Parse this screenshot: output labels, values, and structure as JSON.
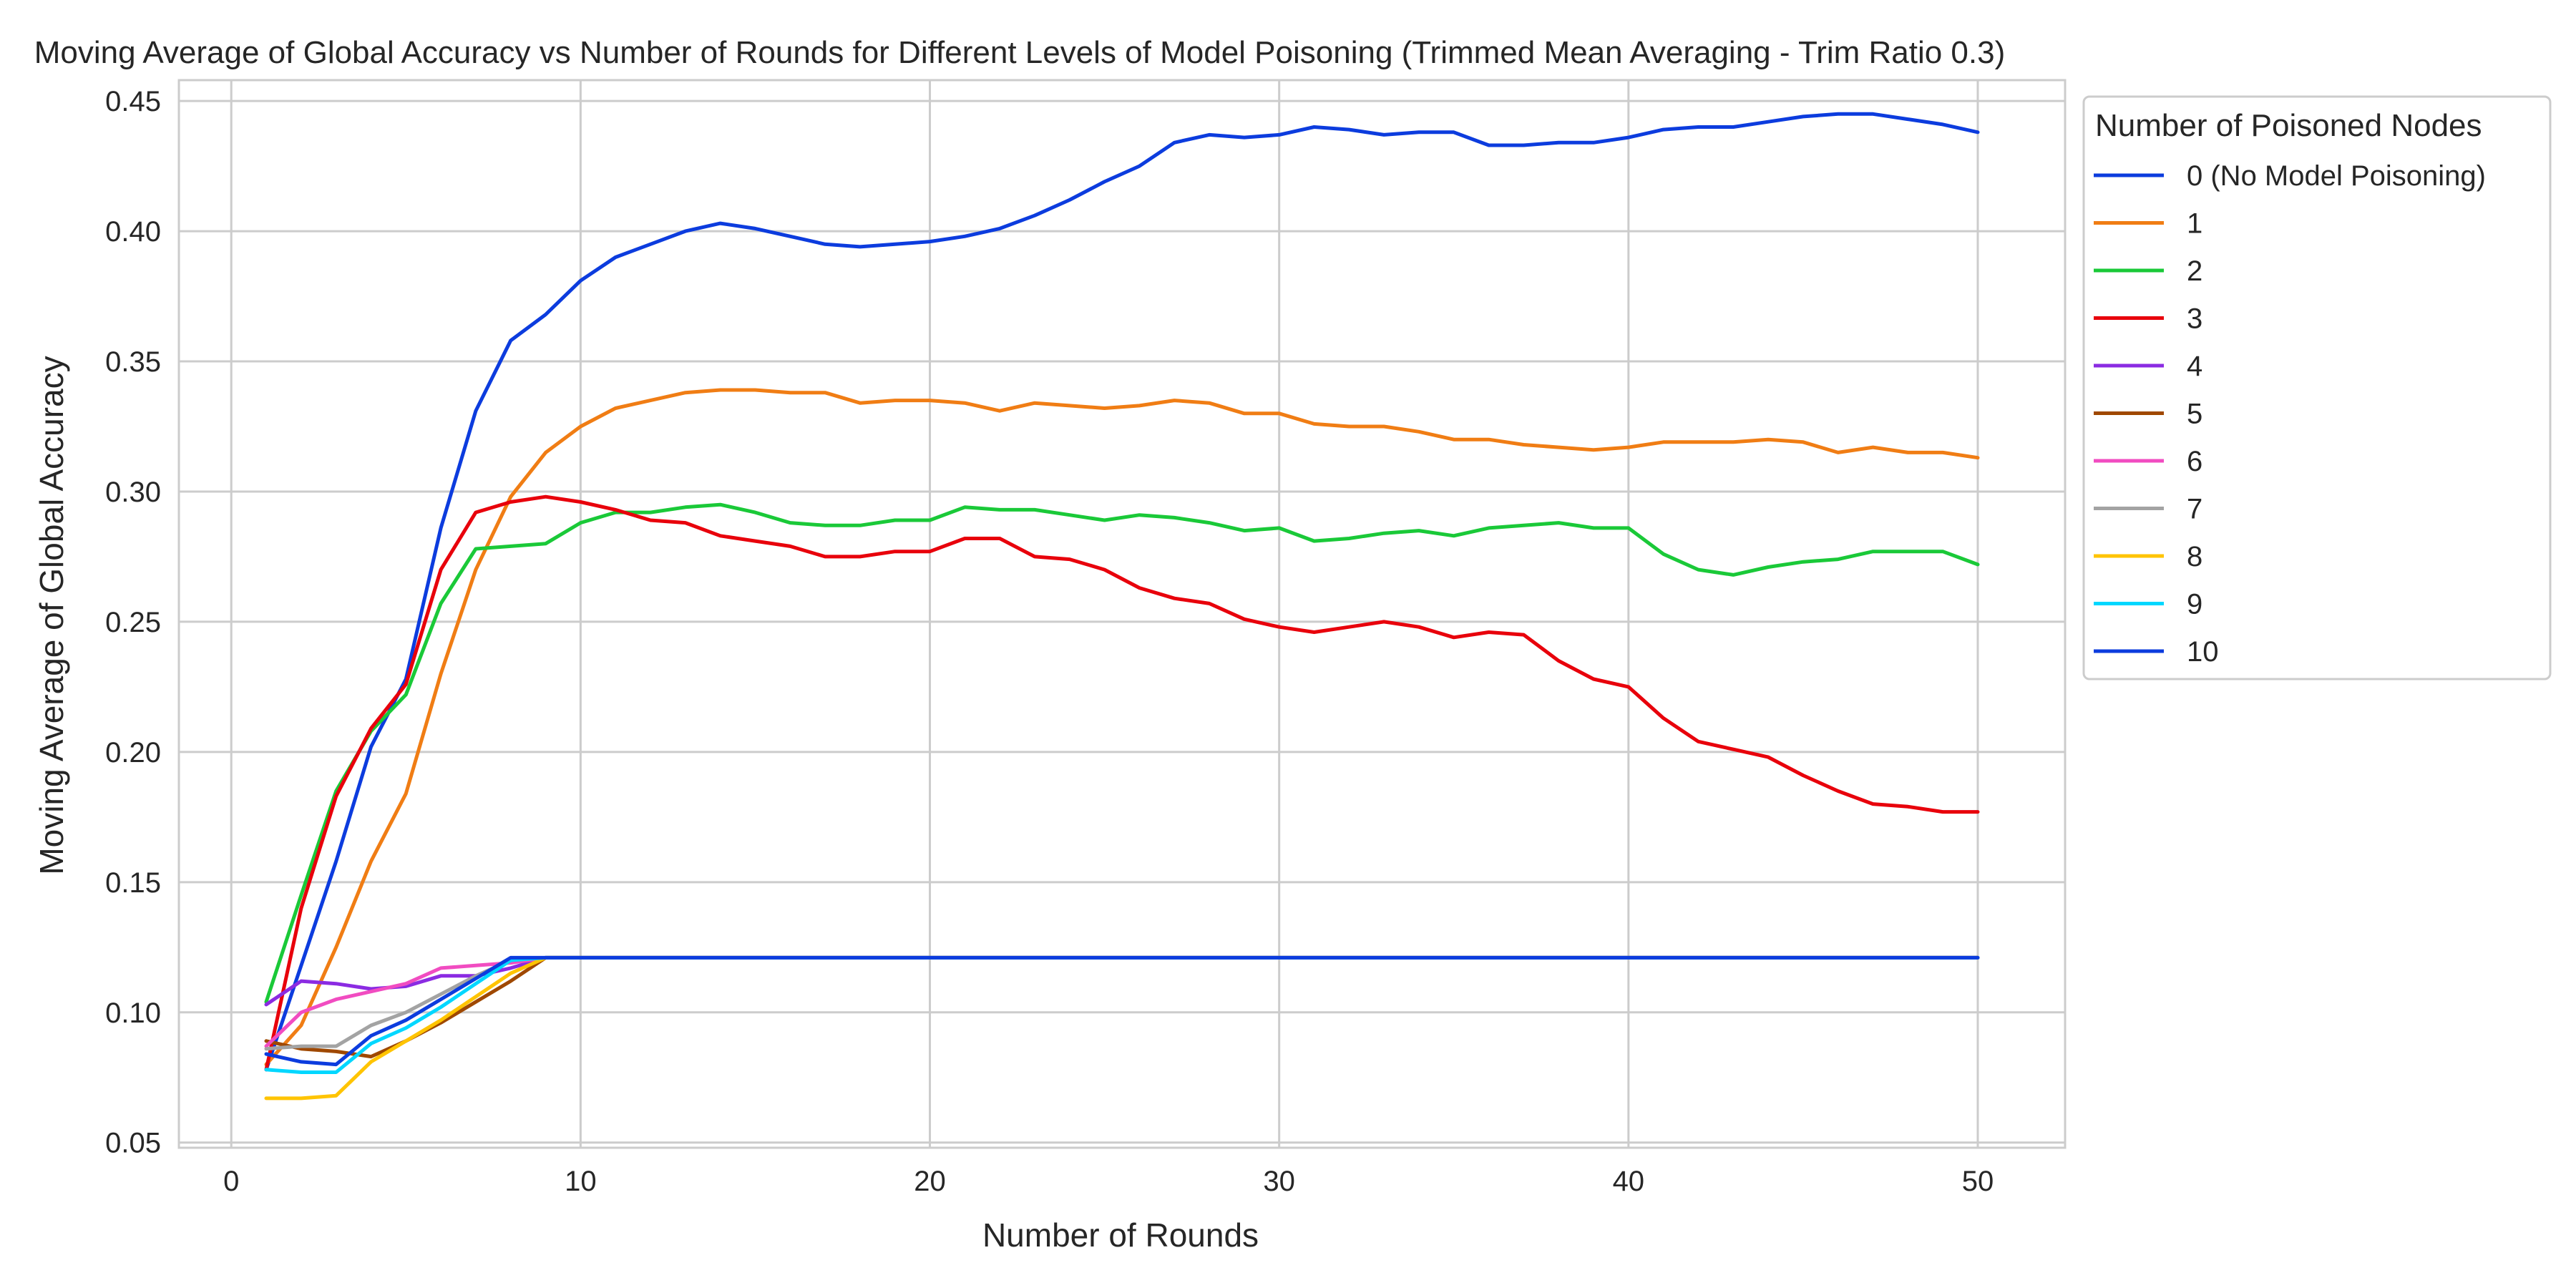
{
  "chart_data": {
    "type": "line",
    "title": "Moving Average of Global Accuracy vs Number of Rounds for Different Levels of Model Poisoning (Trimmed Mean Averaging - Trim Ratio 0.3)",
    "xlabel": "Number of Rounds",
    "ylabel": "Moving Average of Global Accuracy",
    "xlim": [
      -1.5,
      52.5
    ],
    "ylim": [
      0.048,
      0.458
    ],
    "xticks": [
      0,
      10,
      20,
      30,
      40,
      50
    ],
    "yticks": [
      0.05,
      0.1,
      0.15,
      0.2,
      0.25,
      0.3,
      0.35,
      0.4,
      0.45
    ],
    "xtick_labels": [
      "0",
      "10",
      "20",
      "30",
      "40",
      "50"
    ],
    "ytick_labels": [
      "0.05",
      "0.10",
      "0.15",
      "0.20",
      "0.25",
      "0.30",
      "0.35",
      "0.40",
      "0.45"
    ],
    "grid": true,
    "legend": {
      "title": "Number of Poisoned Nodes",
      "placement": "outside-right-top"
    },
    "series": [
      {
        "name": "0 (No Model Poisoning)",
        "color": "#0c3cde",
        "x": [
          1,
          2,
          3,
          4,
          5,
          6,
          7,
          8,
          9,
          10,
          11,
          12,
          13,
          14,
          15,
          16,
          17,
          18,
          19,
          20,
          21,
          22,
          23,
          24,
          25,
          26,
          27,
          28,
          29,
          30,
          31,
          32,
          33,
          34,
          35,
          36,
          37,
          38,
          39,
          40,
          41,
          42,
          43,
          44,
          45,
          46,
          47,
          48,
          49,
          50
        ],
        "y": [
          0.078,
          0.118,
          0.158,
          0.202,
          0.228,
          0.286,
          0.331,
          0.358,
          0.368,
          0.381,
          0.39,
          0.395,
          0.4,
          0.403,
          0.401,
          0.398,
          0.395,
          0.394,
          0.395,
          0.396,
          0.398,
          0.401,
          0.406,
          0.412,
          0.419,
          0.425,
          0.434,
          0.437,
          0.436,
          0.437,
          0.44,
          0.439,
          0.437,
          0.438,
          0.438,
          0.433,
          0.433,
          0.434,
          0.434,
          0.436,
          0.439,
          0.44,
          0.44,
          0.442,
          0.444,
          0.445,
          0.445,
          0.443,
          0.441,
          0.438
        ]
      },
      {
        "name": "1",
        "color": "#f07d14",
        "x": [
          1,
          2,
          3,
          4,
          5,
          6,
          7,
          8,
          9,
          10,
          11,
          12,
          13,
          14,
          15,
          16,
          17,
          18,
          19,
          20,
          21,
          22,
          23,
          24,
          25,
          26,
          27,
          28,
          29,
          30,
          31,
          32,
          33,
          34,
          35,
          36,
          37,
          38,
          39,
          40,
          41,
          42,
          43,
          44,
          45,
          46,
          47,
          48,
          49,
          50
        ],
        "y": [
          0.08,
          0.095,
          0.125,
          0.158,
          0.184,
          0.23,
          0.27,
          0.298,
          0.315,
          0.325,
          0.332,
          0.335,
          0.338,
          0.339,
          0.339,
          0.338,
          0.338,
          0.334,
          0.335,
          0.335,
          0.334,
          0.331,
          0.334,
          0.333,
          0.332,
          0.333,
          0.335,
          0.334,
          0.33,
          0.33,
          0.326,
          0.325,
          0.325,
          0.323,
          0.32,
          0.32,
          0.318,
          0.317,
          0.316,
          0.317,
          0.319,
          0.319,
          0.319,
          0.32,
          0.319,
          0.315,
          0.317,
          0.315,
          0.315,
          0.313
        ]
      },
      {
        "name": "2",
        "color": "#1ac938",
        "x": [
          1,
          2,
          3,
          4,
          5,
          6,
          7,
          8,
          9,
          10,
          11,
          12,
          13,
          14,
          15,
          16,
          17,
          18,
          19,
          20,
          21,
          22,
          23,
          24,
          25,
          26,
          27,
          28,
          29,
          30,
          31,
          32,
          33,
          34,
          35,
          36,
          37,
          38,
          39,
          40,
          41,
          42,
          43,
          44,
          45,
          46,
          47,
          48,
          49,
          50
        ],
        "y": [
          0.104,
          0.145,
          0.185,
          0.208,
          0.222,
          0.257,
          0.278,
          0.279,
          0.28,
          0.288,
          0.292,
          0.292,
          0.294,
          0.295,
          0.292,
          0.288,
          0.287,
          0.287,
          0.289,
          0.289,
          0.294,
          0.293,
          0.293,
          0.291,
          0.289,
          0.291,
          0.29,
          0.288,
          0.285,
          0.286,
          0.281,
          0.282,
          0.284,
          0.285,
          0.283,
          0.286,
          0.287,
          0.288,
          0.286,
          0.286,
          0.276,
          0.27,
          0.268,
          0.271,
          0.273,
          0.274,
          0.277,
          0.277,
          0.277,
          0.272
        ]
      },
      {
        "name": "3",
        "color": "#e8000b",
        "x": [
          1,
          2,
          3,
          4,
          5,
          6,
          7,
          8,
          9,
          10,
          11,
          12,
          13,
          14,
          15,
          16,
          17,
          18,
          19,
          20,
          21,
          22,
          23,
          24,
          25,
          26,
          27,
          28,
          29,
          30,
          31,
          32,
          33,
          34,
          35,
          36,
          37,
          38,
          39,
          40,
          41,
          42,
          43,
          44,
          45,
          46,
          47,
          48,
          49,
          50
        ],
        "y": [
          0.078,
          0.14,
          0.183,
          0.209,
          0.226,
          0.27,
          0.292,
          0.296,
          0.298,
          0.296,
          0.293,
          0.289,
          0.288,
          0.283,
          0.281,
          0.279,
          0.275,
          0.275,
          0.277,
          0.277,
          0.282,
          0.282,
          0.275,
          0.274,
          0.27,
          0.263,
          0.259,
          0.257,
          0.251,
          0.248,
          0.246,
          0.248,
          0.25,
          0.248,
          0.244,
          0.246,
          0.245,
          0.235,
          0.228,
          0.225,
          0.213,
          0.204,
          0.201,
          0.198,
          0.191,
          0.185,
          0.18,
          0.179,
          0.177,
          0.177
        ]
      },
      {
        "name": "4",
        "color": "#8b2be2",
        "x": [
          1,
          2,
          3,
          4,
          5,
          6,
          7,
          8,
          9,
          10,
          11,
          12,
          13,
          14,
          15,
          16,
          17,
          18,
          19,
          20,
          21,
          22,
          23,
          24,
          25,
          26,
          27,
          28,
          29,
          30,
          31,
          32,
          33,
          34,
          35,
          36,
          37,
          38,
          39,
          40,
          41,
          42,
          43,
          44,
          45,
          46,
          47,
          48,
          49,
          50
        ],
        "y": [
          0.103,
          0.112,
          0.111,
          0.109,
          0.11,
          0.114,
          0.114,
          0.117,
          0.121,
          0.121,
          0.121,
          0.121,
          0.121,
          0.121,
          0.121,
          0.121,
          0.121,
          0.121,
          0.121,
          0.121,
          0.121,
          0.121,
          0.121,
          0.121,
          0.121,
          0.121,
          0.121,
          0.121,
          0.121,
          0.121,
          0.121,
          0.121,
          0.121,
          0.121,
          0.121,
          0.121,
          0.121,
          0.121,
          0.121,
          0.121,
          0.121,
          0.121,
          0.121,
          0.121,
          0.121,
          0.121,
          0.121,
          0.121,
          0.121,
          0.121
        ]
      },
      {
        "name": "5",
        "color": "#9f4800",
        "x": [
          1,
          2,
          3,
          4,
          5,
          6,
          7,
          8,
          9,
          10,
          11,
          12,
          13,
          14,
          15,
          16,
          17,
          18,
          19,
          20,
          21,
          22,
          23,
          24,
          25,
          26,
          27,
          28,
          29,
          30,
          31,
          32,
          33,
          34,
          35,
          36,
          37,
          38,
          39,
          40,
          41,
          42,
          43,
          44,
          45,
          46,
          47,
          48,
          49,
          50
        ],
        "y": [
          0.089,
          0.086,
          0.085,
          0.083,
          0.089,
          0.096,
          0.104,
          0.112,
          0.121,
          0.121,
          0.121,
          0.121,
          0.121,
          0.121,
          0.121,
          0.121,
          0.121,
          0.121,
          0.121,
          0.121,
          0.121,
          0.121,
          0.121,
          0.121,
          0.121,
          0.121,
          0.121,
          0.121,
          0.121,
          0.121,
          0.121,
          0.121,
          0.121,
          0.121,
          0.121,
          0.121,
          0.121,
          0.121,
          0.121,
          0.121,
          0.121,
          0.121,
          0.121,
          0.121,
          0.121,
          0.121,
          0.121,
          0.121,
          0.121,
          0.121
        ]
      },
      {
        "name": "6",
        "color": "#f14cc1",
        "x": [
          1,
          2,
          3,
          4,
          5,
          6,
          7,
          8,
          9,
          10,
          11,
          12,
          13,
          14,
          15,
          16,
          17,
          18,
          19,
          20,
          21,
          22,
          23,
          24,
          25,
          26,
          27,
          28,
          29,
          30,
          31,
          32,
          33,
          34,
          35,
          36,
          37,
          38,
          39,
          40,
          41,
          42,
          43,
          44,
          45,
          46,
          47,
          48,
          49,
          50
        ],
        "y": [
          0.087,
          0.1,
          0.105,
          0.108,
          0.111,
          0.117,
          0.118,
          0.119,
          0.121,
          0.121,
          0.121,
          0.121,
          0.121,
          0.121,
          0.121,
          0.121,
          0.121,
          0.121,
          0.121,
          0.121,
          0.121,
          0.121,
          0.121,
          0.121,
          0.121,
          0.121,
          0.121,
          0.121,
          0.121,
          0.121,
          0.121,
          0.121,
          0.121,
          0.121,
          0.121,
          0.121,
          0.121,
          0.121,
          0.121,
          0.121,
          0.121,
          0.121,
          0.121,
          0.121,
          0.121,
          0.121,
          0.121,
          0.121,
          0.121,
          0.121
        ]
      },
      {
        "name": "7",
        "color": "#a3a3a3",
        "x": [
          1,
          2,
          3,
          4,
          5,
          6,
          7,
          8,
          9,
          10,
          11,
          12,
          13,
          14,
          15,
          16,
          17,
          18,
          19,
          20,
          21,
          22,
          23,
          24,
          25,
          26,
          27,
          28,
          29,
          30,
          31,
          32,
          33,
          34,
          35,
          36,
          37,
          38,
          39,
          40,
          41,
          42,
          43,
          44,
          45,
          46,
          47,
          48,
          49,
          50
        ],
        "y": [
          0.086,
          0.087,
          0.087,
          0.095,
          0.1,
          0.107,
          0.114,
          0.12,
          0.121,
          0.121,
          0.121,
          0.121,
          0.121,
          0.121,
          0.121,
          0.121,
          0.121,
          0.121,
          0.121,
          0.121,
          0.121,
          0.121,
          0.121,
          0.121,
          0.121,
          0.121,
          0.121,
          0.121,
          0.121,
          0.121,
          0.121,
          0.121,
          0.121,
          0.121,
          0.121,
          0.121,
          0.121,
          0.121,
          0.121,
          0.121,
          0.121,
          0.121,
          0.121,
          0.121,
          0.121,
          0.121,
          0.121,
          0.121,
          0.121,
          0.121
        ]
      },
      {
        "name": "8",
        "color": "#ffc400",
        "x": [
          1,
          2,
          3,
          4,
          5,
          6,
          7,
          8,
          9,
          10,
          11,
          12,
          13,
          14,
          15,
          16,
          17,
          18,
          19,
          20,
          21,
          22,
          23,
          24,
          25,
          26,
          27,
          28,
          29,
          30,
          31,
          32,
          33,
          34,
          35,
          36,
          37,
          38,
          39,
          40,
          41,
          42,
          43,
          44,
          45,
          46,
          47,
          48,
          49,
          50
        ],
        "y": [
          0.067,
          0.067,
          0.068,
          0.081,
          0.089,
          0.097,
          0.106,
          0.115,
          0.121,
          0.121,
          0.121,
          0.121,
          0.121,
          0.121,
          0.121,
          0.121,
          0.121,
          0.121,
          0.121,
          0.121,
          0.121,
          0.121,
          0.121,
          0.121,
          0.121,
          0.121,
          0.121,
          0.121,
          0.121,
          0.121,
          0.121,
          0.121,
          0.121,
          0.121,
          0.121,
          0.121,
          0.121,
          0.121,
          0.121,
          0.121,
          0.121,
          0.121,
          0.121,
          0.121,
          0.121,
          0.121,
          0.121,
          0.121,
          0.121,
          0.121
        ]
      },
      {
        "name": "9",
        "color": "#00d7ff",
        "x": [
          1,
          2,
          3,
          4,
          5,
          6,
          7,
          8,
          9,
          10,
          11,
          12,
          13,
          14,
          15,
          16,
          17,
          18,
          19,
          20,
          21,
          22,
          23,
          24,
          25,
          26,
          27,
          28,
          29,
          30,
          31,
          32,
          33,
          34,
          35,
          36,
          37,
          38,
          39,
          40,
          41,
          42,
          43,
          44,
          45,
          46,
          47,
          48,
          49,
          50
        ],
        "y": [
          0.078,
          0.077,
          0.077,
          0.088,
          0.094,
          0.102,
          0.111,
          0.12,
          0.121,
          0.121,
          0.121,
          0.121,
          0.121,
          0.121,
          0.121,
          0.121,
          0.121,
          0.121,
          0.121,
          0.121,
          0.121,
          0.121,
          0.121,
          0.121,
          0.121,
          0.121,
          0.121,
          0.121,
          0.121,
          0.121,
          0.121,
          0.121,
          0.121,
          0.121,
          0.121,
          0.121,
          0.121,
          0.121,
          0.121,
          0.121,
          0.121,
          0.121,
          0.121,
          0.121,
          0.121,
          0.121,
          0.121,
          0.121,
          0.121,
          0.121
        ]
      },
      {
        "name": "10",
        "color": "#0c3cde",
        "x": [
          1,
          2,
          3,
          4,
          5,
          6,
          7,
          8,
          9,
          10,
          11,
          12,
          13,
          14,
          15,
          16,
          17,
          18,
          19,
          20,
          21,
          22,
          23,
          24,
          25,
          26,
          27,
          28,
          29,
          30,
          31,
          32,
          33,
          34,
          35,
          36,
          37,
          38,
          39,
          40,
          41,
          42,
          43,
          44,
          45,
          46,
          47,
          48,
          49,
          50
        ],
        "y": [
          0.084,
          0.081,
          0.08,
          0.091,
          0.097,
          0.105,
          0.113,
          0.121,
          0.121,
          0.121,
          0.121,
          0.121,
          0.121,
          0.121,
          0.121,
          0.121,
          0.121,
          0.121,
          0.121,
          0.121,
          0.121,
          0.121,
          0.121,
          0.121,
          0.121,
          0.121,
          0.121,
          0.121,
          0.121,
          0.121,
          0.121,
          0.121,
          0.121,
          0.121,
          0.121,
          0.121,
          0.121,
          0.121,
          0.121,
          0.121,
          0.121,
          0.121,
          0.121,
          0.121,
          0.121,
          0.121,
          0.121,
          0.121,
          0.121,
          0.121
        ]
      }
    ]
  }
}
